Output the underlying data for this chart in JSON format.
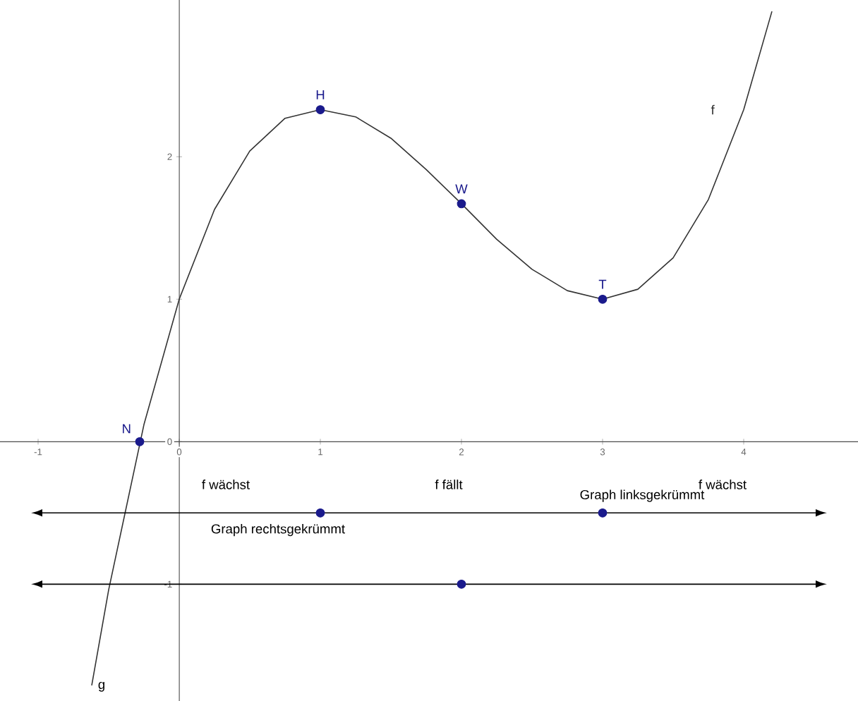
{
  "chart_data": {
    "type": "line",
    "xlim": [
      -1.27,
      4.81
    ],
    "ylim": [
      -1.82,
      3.1
    ],
    "xticks": [
      -1,
      0,
      1,
      2,
      3,
      4
    ],
    "yticks": [
      -1,
      0,
      1,
      2
    ],
    "series": [
      {
        "name": "f",
        "color": "#333333",
        "marker": "none",
        "x": [
          -0.62,
          -0.5,
          -0.25,
          0,
          0.25,
          0.5,
          0.75,
          1,
          1.25,
          1.5,
          1.75,
          2,
          2.25,
          2.5,
          2.75,
          3,
          3.25,
          3.5,
          3.75,
          4,
          4.2
        ],
        "values": [
          -1.71,
          -1.04,
          0.12,
          1,
          1.63,
          2.04,
          2.27,
          2.33,
          2.28,
          2.13,
          1.91,
          1.67,
          1.42,
          1.21,
          1.06,
          1,
          1.07,
          1.29,
          1.7,
          2.33,
          3.02
        ]
      },
      {
        "color": "#000000",
        "marker": "none",
        "x": [
          -0.97,
          4.51
        ],
        "values": [
          -0.5,
          -0.5
        ]
      },
      {
        "color": "#000000",
        "marker": "none",
        "x": [
          -0.97,
          4.51
        ],
        "values": [
          -1,
          -1
        ]
      },
      {
        "type": "scatter",
        "name": "N",
        "color": "#1a1a8c",
        "marker": "circle",
        "x": [
          -0.28
        ],
        "values": [
          0
        ]
      },
      {
        "type": "scatter",
        "name": "H",
        "color": "#1a1a8c",
        "marker": "circle",
        "x": [
          1
        ],
        "values": [
          2.33
        ]
      },
      {
        "type": "scatter",
        "name": "W",
        "color": "#1a1a8c",
        "marker": "circle",
        "x": [
          2
        ],
        "values": [
          1.67
        ]
      },
      {
        "type": "scatter",
        "name": "T",
        "color": "#1a1a8c",
        "marker": "circle",
        "x": [
          3
        ],
        "values": [
          1
        ]
      },
      {
        "type": "scatter",
        "color": "#1a1a8c",
        "marker": "circle",
        "x": [
          1,
          3
        ],
        "values": [
          -0.5,
          -0.5
        ]
      },
      {
        "type": "scatter",
        "color": "#1a1a8c",
        "marker": "circle",
        "x": [
          2
        ],
        "values": [
          -1
        ]
      }
    ],
    "annotations": [
      "f wächst",
      "f fällt",
      "f wächst",
      "Graph rechtsgekrümmt",
      "Graph linksgekrümmt",
      "g"
    ]
  }
}
